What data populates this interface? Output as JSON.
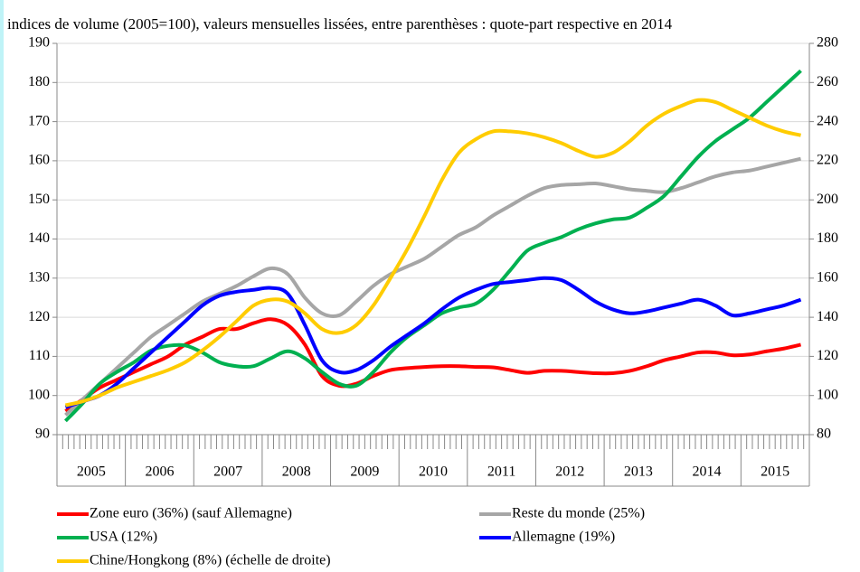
{
  "chart_data": {
    "type": "line",
    "subtitle": "indices de volume (2005=100), valeurs mensuelles lissées, entre parenthèses : quote-part respective en 2014",
    "x_group_labels": [
      "2005",
      "2006",
      "2007",
      "2008",
      "2009",
      "2010",
      "2011",
      "2012",
      "2013",
      "2014",
      "2015"
    ],
    "categories": [
      null,
      null,
      null,
      null,
      null,
      null,
      null,
      null,
      null,
      null,
      null,
      null,
      null,
      null,
      null,
      null,
      null,
      null,
      null,
      null,
      null,
      null,
      null,
      null,
      null,
      null,
      null,
      null,
      null,
      null,
      null,
      null,
      null,
      null,
      null,
      null,
      null,
      null,
      null,
      null,
      null,
      null,
      null,
      null
    ],
    "ylim": [
      90,
      190
    ],
    "yticks": [
      90,
      100,
      110,
      120,
      130,
      140,
      150,
      160,
      170,
      180,
      190
    ],
    "y2lim": [
      80,
      280
    ],
    "y2ticks": [
      80,
      100,
      120,
      140,
      160,
      180,
      200,
      220,
      240,
      260,
      280
    ],
    "grid": true,
    "legend": "bottom",
    "series": [
      {
        "name": "Zone euro (36%) (sauf Allemagne)",
        "color": "#ff0000",
        "values": [
          96,
          99,
          102,
          104,
          106,
          108,
          110,
          113,
          115,
          117,
          117,
          118.5,
          119.5,
          118,
          113,
          105,
          102.5,
          103,
          105,
          106.5,
          107,
          107.3,
          107.5,
          107.5,
          107.3,
          107.2,
          106.5,
          105.8,
          106.3,
          106.3,
          106,
          105.7,
          105.7,
          106.3,
          107.5,
          109,
          110,
          111,
          111,
          110.3,
          110.5,
          111.3,
          112,
          113
        ]
      },
      {
        "name": "Reste du monde (25%)",
        "color": "#a6a6a6",
        "values": [
          95,
          99,
          103,
          107,
          111,
          115,
          118,
          121,
          124,
          126,
          128,
          130.5,
          132.5,
          131,
          125,
          121,
          120.5,
          124,
          128,
          131,
          133,
          135,
          138,
          141,
          143,
          146,
          148.5,
          151,
          153,
          153.8,
          154,
          154.2,
          153.5,
          152.7,
          152.3,
          152,
          153,
          154.5,
          156,
          157,
          157.5,
          158.5,
          159.5,
          160.5
        ]
      },
      {
        "name": "USA (12%)",
        "color": "#00b050",
        "values": [
          93.5,
          98,
          103,
          106,
          108.5,
          111.5,
          112.7,
          112.8,
          111,
          108.5,
          107.5,
          107.5,
          109.5,
          111.3,
          109.5,
          106,
          103,
          102.5,
          106,
          111,
          115,
          118,
          121,
          122.5,
          123.5,
          127,
          132,
          137,
          139,
          140.5,
          142.5,
          144,
          145,
          145.5,
          148,
          151,
          156,
          161,
          165,
          168,
          171,
          175,
          179,
          183
        ]
      },
      {
        "name": "Allemagne (19%)",
        "color": "#0000ff",
        "values": [
          97,
          98.5,
          100,
          103,
          107,
          111,
          115,
          119,
          123,
          125.5,
          126.5,
          127,
          127.5,
          126,
          118,
          109,
          106,
          106.5,
          109,
          112.5,
          115.5,
          118.5,
          122,
          125,
          127,
          128.5,
          129,
          129.5,
          130,
          129.5,
          127,
          124,
          122,
          121,
          121.5,
          122.5,
          123.5,
          124.5,
          123,
          120.5,
          121,
          122,
          123,
          124.5
        ]
      },
      {
        "name": "Chine/Hongkong (8%) (échelle de droite)",
        "color": "#ffcc00",
        "axis": "y2",
        "values": [
          95,
          97,
          100,
          104,
          107,
          110,
          113,
          117,
          123,
          130,
          138,
          146,
          149,
          148,
          142,
          134,
          132,
          136,
          146,
          160,
          175,
          192,
          210,
          224,
          231,
          235,
          235,
          234,
          232,
          229,
          225,
          222,
          224,
          230,
          238,
          244,
          248,
          251,
          250,
          246,
          242,
          238,
          235,
          233
        ]
      }
    ]
  }
}
